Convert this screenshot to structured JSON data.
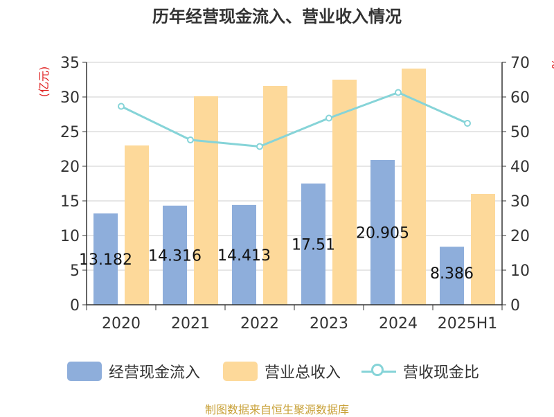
{
  "colors": {
    "cash_flow": "#8eaedb",
    "revenue": "#fdd99a",
    "ratio": "#86d4d8",
    "grid": "#cccccc",
    "axis": "#333333",
    "unit_label": "#e02020",
    "source": "#c9a23a"
  },
  "chart_data": {
    "type": "bar",
    "title": "历年经营现金流入、营业收入情况",
    "categories": [
      "2020",
      "2021",
      "2022",
      "2023",
      "2024",
      "2025H1"
    ],
    "y_left": {
      "label": "(亿元)",
      "ylim": [
        0,
        35
      ],
      "ticks": [
        0,
        5,
        10,
        15,
        20,
        25,
        30,
        35
      ]
    },
    "y_right": {
      "label": "%",
      "ylim": [
        0,
        70
      ],
      "ticks": [
        0,
        10,
        20,
        30,
        40,
        50,
        60,
        70
      ]
    },
    "grid": true,
    "legend_position": "bottom",
    "series": [
      {
        "name": "经营现金流入",
        "type": "bar",
        "axis": "left",
        "values": [
          13.182,
          14.316,
          14.413,
          17.51,
          20.905,
          8.386
        ],
        "data_labels": [
          "13.182",
          "14.316",
          "14.413",
          "17.51",
          "20.905",
          "8.386"
        ]
      },
      {
        "name": "营业总收入",
        "type": "bar",
        "axis": "left",
        "values": [
          23.0,
          30.1,
          31.6,
          32.5,
          34.1,
          16.0
        ]
      },
      {
        "name": "营收现金比",
        "type": "line",
        "axis": "right",
        "values": [
          57.3,
          47.6,
          45.7,
          53.9,
          61.3,
          52.4
        ]
      }
    ]
  },
  "source": "制图数据来自恒生聚源数据库"
}
